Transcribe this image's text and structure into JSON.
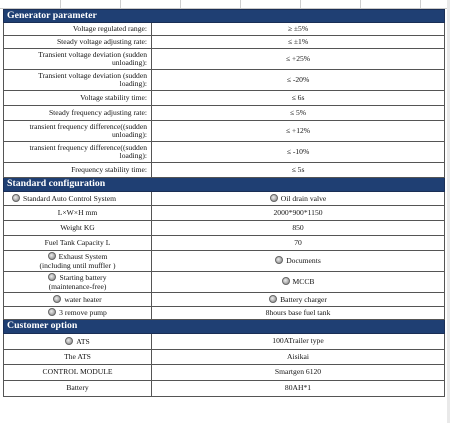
{
  "generator": {
    "title": "Generator parameter",
    "rows": [
      {
        "label": "Voltage regulated range:",
        "value": "≥ ±5%"
      },
      {
        "label": "Steady voltage adjusting rate:",
        "value": "≤ ±1%"
      },
      {
        "label_line1": "Transient voltage deviation      (sudden",
        "label_line2": "unloading):",
        "value": "≤ +25%"
      },
      {
        "label_line1": "Transient voltage deviation      (sudden",
        "label_line2": "loading):",
        "value": "≤ -20%"
      },
      {
        "label": "Voltage stability time:",
        "value": "≤ 6s"
      },
      {
        "label": "Steady frequency adjusting rate:",
        "value": "≤ 5%"
      },
      {
        "label_line1": "transient frequency difference((sudden",
        "label_line2": "unloading):",
        "value": "≤ +12%"
      },
      {
        "label_line1": "transient frequency difference((sudden",
        "label_line2": "loading):",
        "value": "≤ -10%"
      },
      {
        "label": "Frequency stability time:",
        "value": "≤ 5s"
      }
    ]
  },
  "standard": {
    "title": "Standard configuration",
    "rows": [
      {
        "left": "Standard Auto Control System",
        "left_bullet": true,
        "right": "Oil drain valve",
        "right_bullet": true
      },
      {
        "left": "L×W×H mm",
        "right": "2000*900*1150"
      },
      {
        "left": "Weight KG",
        "right": "850"
      },
      {
        "left": "Fuel Tank Capacity    L",
        "right": "70"
      },
      {
        "left_line1": "Exhaust  System",
        "left_line2": "(including until muffler )",
        "left_bullet": true,
        "right": "Documents",
        "right_bullet": true
      },
      {
        "left_line1": "Starting battery",
        "left_line2": "(maintenance-free)",
        "left_bullet": true,
        "right": "MCCB",
        "right_bullet": true
      },
      {
        "left": "water heater",
        "left_bullet": true,
        "right": "Battery charger",
        "right_bullet": true
      },
      {
        "left": "3 remove pump",
        "left_bullet": true,
        "right": "8hours base fuel tank"
      }
    ]
  },
  "customer": {
    "title": "Customer option",
    "rows": [
      {
        "left": "ATS",
        "left_bullet": true,
        "right": "100ATrailer type"
      },
      {
        "left": "The ATS",
        "right": "Aisikai"
      },
      {
        "left": "CONTROL MODULE",
        "right": "Smartgen 6120"
      },
      {
        "left": "Battery",
        "right": "80AH*1"
      }
    ]
  }
}
